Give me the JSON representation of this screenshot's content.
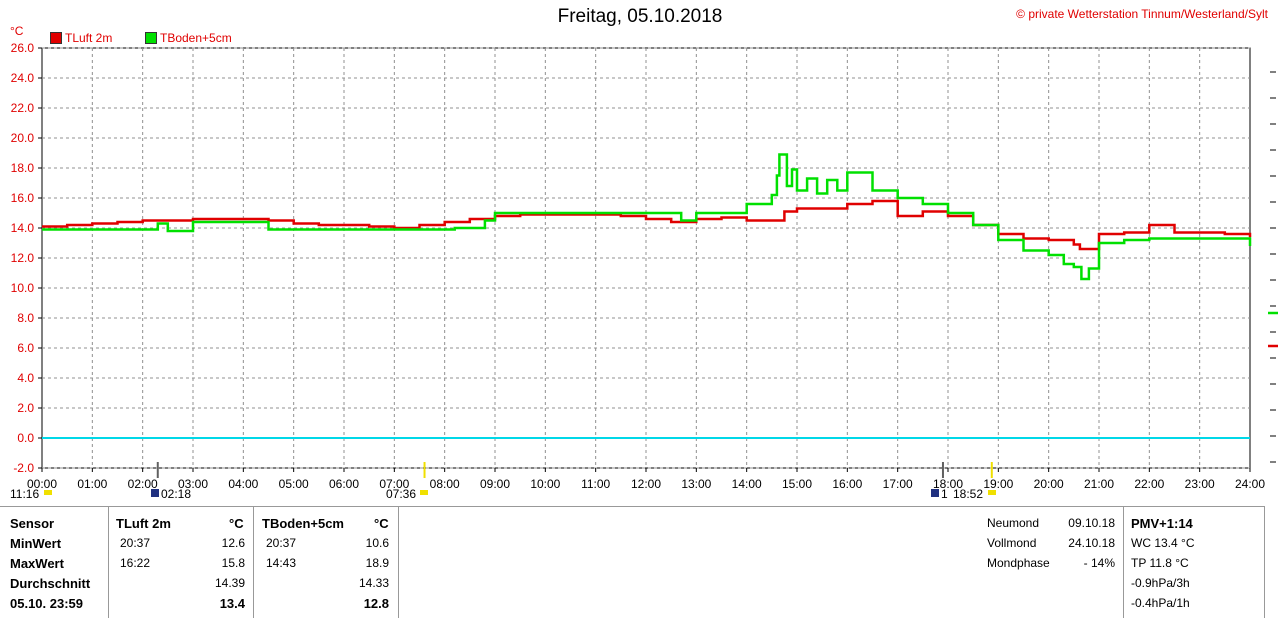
{
  "header": {
    "title": "Freitag, 05.10.2018",
    "copyright": "© private Wetterstation Tinnum/Westerland/Sylt",
    "unit": "°C"
  },
  "markers": {
    "sunrise": "07:36",
    "sunset": "18:52",
    "moonrise": "02:18",
    "left_marker": "11:16",
    "moon_label": "1"
  },
  "colors": {
    "tluft": "#e00000",
    "tboden": "#00e000",
    "zero": "#00d8e8",
    "grid": "#909090"
  },
  "chart_data": {
    "type": "line",
    "title": "Freitag, 05.10.2018",
    "xlabel": "",
    "ylabel": "°C",
    "ylim": [
      -2,
      26
    ],
    "xlim": [
      0,
      24
    ],
    "grid": true,
    "legend": "top-left",
    "yticks": [
      "-2.0",
      "0.0",
      "2.0",
      "4.0",
      "6.0",
      "8.0",
      "10.0",
      "12.0",
      "14.0",
      "16.0",
      "18.0",
      "20.0",
      "22.0",
      "24.0",
      "26.0"
    ],
    "xticks": [
      "00:00",
      "01:00",
      "02:00",
      "03:00",
      "04:00",
      "05:00",
      "06:00",
      "07:00",
      "08:00",
      "09:00",
      "10:00",
      "11:00",
      "12:00",
      "13:00",
      "14:00",
      "15:00",
      "16:00",
      "17:00",
      "18:00",
      "19:00",
      "20:00",
      "21:00",
      "22:00",
      "23:00",
      "24:00"
    ],
    "series": [
      {
        "name": "TLuft 2m",
        "color": "#e00000",
        "x": [
          0,
          0.5,
          1,
          1.5,
          2,
          2.5,
          3,
          3.5,
          4,
          4.5,
          5,
          5.5,
          6,
          6.5,
          7,
          7.5,
          8,
          8.5,
          9,
          9.5,
          10,
          10.5,
          11,
          11.5,
          12,
          12.5,
          13,
          13.5,
          14,
          14.5,
          14.75,
          15,
          15.5,
          16,
          16.5,
          17,
          17.5,
          18,
          18.5,
          19,
          19.5,
          20,
          20.5,
          20.62,
          21,
          21.5,
          22,
          22.5,
          23,
          23.5,
          24
        ],
        "y": [
          14.1,
          14.2,
          14.3,
          14.4,
          14.5,
          14.5,
          14.6,
          14.6,
          14.6,
          14.5,
          14.3,
          14.2,
          14.2,
          14.1,
          14.0,
          14.2,
          14.4,
          14.6,
          14.8,
          14.9,
          14.9,
          14.9,
          14.9,
          14.8,
          14.6,
          14.4,
          14.6,
          14.7,
          14.5,
          14.5,
          15.1,
          15.3,
          15.3,
          15.6,
          15.8,
          14.8,
          15.1,
          14.8,
          14.2,
          13.6,
          13.3,
          13.2,
          12.9,
          12.6,
          13.6,
          13.7,
          14.2,
          13.7,
          13.7,
          13.6,
          13.4
        ]
      },
      {
        "name": "TBoden+5cm",
        "color": "#00e000",
        "x": [
          0,
          1,
          2,
          2.3,
          2.5,
          3,
          3.5,
          4,
          4.5,
          5,
          6,
          7,
          8,
          8.2,
          8.8,
          9,
          10,
          11,
          12,
          12.7,
          13,
          13.6,
          14,
          14.5,
          14.6,
          14.65,
          14.8,
          14.9,
          15,
          15.2,
          15.4,
          15.6,
          15.8,
          16,
          16.5,
          17,
          17.5,
          18,
          18.5,
          19,
          19.5,
          20,
          20.3,
          20.5,
          20.65,
          20.8,
          21,
          21.5,
          22,
          22.5,
          23,
          23.5,
          24
        ],
        "y": [
          13.9,
          13.9,
          13.9,
          14.3,
          13.8,
          14.4,
          14.4,
          14.4,
          13.9,
          13.9,
          13.9,
          13.9,
          13.9,
          14.0,
          14.5,
          15.0,
          15.0,
          15.0,
          15.0,
          14.5,
          15.0,
          15.0,
          15.6,
          16.2,
          17.5,
          18.9,
          16.8,
          17.9,
          16.5,
          17.3,
          16.3,
          17.2,
          16.5,
          17.7,
          16.5,
          16.0,
          15.6,
          15.0,
          14.2,
          13.2,
          12.5,
          12.2,
          11.6,
          11.4,
          10.6,
          11.3,
          13.0,
          13.2,
          13.3,
          13.3,
          13.3,
          13.3,
          12.8
        ]
      }
    ]
  },
  "table": {
    "col_sensor": "Sensor",
    "col1": "TLuft 2m",
    "col2": "TBoden+5cm",
    "unit": "°C",
    "rows": [
      {
        "label": "MinWert",
        "t1": "20:37",
        "v1": "12.6",
        "t2": "20:37",
        "v2": "10.6"
      },
      {
        "label": "MaxWert",
        "t1": "16:22",
        "v1": "15.8",
        "t2": "14:43",
        "v2": "18.9"
      },
      {
        "label": "Durchschnitt",
        "t1": "",
        "v1": "14.39",
        "t2": "",
        "v2": "14.33"
      },
      {
        "label": "05.10. 23:59",
        "t1": "",
        "v1": "13.4",
        "t2": "",
        "v2": "12.8"
      }
    ],
    "moon": [
      {
        "label": "Neumond",
        "value": "09.10.18"
      },
      {
        "label": "Vollmond",
        "value": "24.10.18"
      },
      {
        "label": "Mondphase",
        "value": "- 14%"
      }
    ],
    "pmv": {
      "title": "PMV+1:14",
      "lines": [
        "WC 13.4 °C",
        "TP 11.8 °C",
        "-0.9hPa/3h",
        "-0.4hPa/1h"
      ]
    }
  }
}
